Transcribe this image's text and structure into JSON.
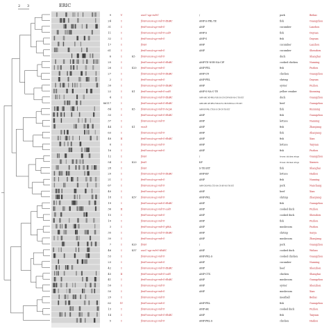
{
  "figure": {
    "header": "ERIC",
    "scale_ticks": [
      "2",
      "3"
    ]
  },
  "rows": [
    {
      "id": "9",
      "st": "V",
      "genes": "uneU-ugz-mdrU",
      "sero": "",
      "res": "/",
      "src": "pork",
      "city": "Beihai"
    },
    {
      "id": "24",
      "st": "I",
      "genes": "fimH-uncA-ugz-mdrO-tEsBC",
      "sero": "",
      "res": "AMP-S-PRL-TE",
      "src": "fish",
      "city": "Guangzhou"
    },
    {
      "id": "31",
      "st": "I",
      "genes": "fimH-uncA-ugz-mdrO",
      "sero": "",
      "res": "AMP",
      "src": "cucumber",
      "city": "Lanzhou"
    },
    {
      "id": "11",
      "st": "I",
      "genes": "fimH-uncA-ugz-mdrO-uulO",
      "sero": "",
      "res": "AMP-S",
      "src": "fish",
      "city": "Dayuan"
    },
    {
      "id": "32",
      "st": "I",
      "genes": "fimH-uncA-ugz-mdrO",
      "sero": "",
      "res": "AMP-S",
      "src": "fish",
      "city": "Dayuan"
    },
    {
      "id": "17",
      "st": "I",
      "genes": "fimH",
      "sero": "",
      "res": "AMP",
      "src": "cucumber",
      "city": "Lanzhou"
    },
    {
      "id": "61",
      "st": "I",
      "genes": "fimH-uncA-ugz-mdrO",
      "sero": "",
      "res": "AMP",
      "src": "cucumber",
      "city": "Shenzhen"
    },
    {
      "id": "6",
      "st": "I",
      "genes": "fimH-uncA-ugz-mdrO",
      "sero": "K5",
      "res": "",
      "src": "duck",
      "city": "Shanghai"
    },
    {
      "id": "25",
      "st": "I",
      "genes": "fimH-uncA-ugz-mdrO-tEsBC",
      "sero": "",
      "res": "AMP-TE-NOR-NA-CIP",
      "src": "cooked chicken",
      "city": "Nanning"
    },
    {
      "id": "26",
      "st": "I",
      "genes": "fimH-uncA-ugz-mdrO",
      "sero": "K20",
      "res": "AMP-PRL",
      "src": "fish",
      "city": "Fuzhou"
    },
    {
      "id": "27",
      "st": "I",
      "genes": "fimH-uncA-ugz-mdrO-tEsBC",
      "sero": "",
      "res": "AMP-CN",
      "src": "chicken",
      "city": "Guangzhou"
    },
    {
      "id": "2",
      "st": "I",
      "genes": "fimH-uncA-ugz-mdrO",
      "sero": "",
      "res": "AMP-PRL",
      "src": "shrimp",
      "city": "Dayuan"
    },
    {
      "id": "39",
      "st": "I",
      "genes": "fimH-uncA-ugz-mdrO-tEsBC",
      "sero": "",
      "res": "AMP",
      "src": "oyster",
      "city": "Fuzhou"
    },
    {
      "id": "22",
      "st": "I",
      "genes": "fimH-uncA-ugz-mdrO-uulO",
      "sero": "K1",
      "res": "AMP-S-NA-C-TE",
      "src": "yellow croaker",
      "city": "Kunming"
    },
    {
      "id": "4",
      "st": "I",
      "genes": "fimH-uncA-ugz-mdrO-tEsBC",
      "sero": "",
      "res": "AMP-AMC-KF-PRL-FOX-S-K-CN-CIP-NOR-NA-C-TE-SXT",
      "src": "duck",
      "city": "Guangzhou"
    },
    {
      "id": "86117",
      "st": "I",
      "genes": "fimH-uncA-ugz-mdrO-tEsBC",
      "sero": "",
      "res": "AMP-AMC-KF-PRL-FOX-K-CN-CIP-NOR-NA-C-TE-SXT",
      "src": "beef",
      "city": "Guangzhou"
    },
    {
      "id": "84",
      "st": "I",
      "genes": "fimH-uncA-ugz-mdrO-mcpA",
      "sero": "K5",
      "res": "AMP-KF-PRL-CTX-K-S-CIP-CN-TE-SXT",
      "src": "fish",
      "city": "Kunming"
    },
    {
      "id": "33",
      "st": "I",
      "genes": "fimH-uncA-ugz-mdrO-tEsBC",
      "sero": "",
      "res": "AMP",
      "src": "fish",
      "city": "Guangzhou"
    },
    {
      "id": "37",
      "st": "I",
      "genes": "fimH-uncA-ugz-mdrO",
      "sero": "",
      "res": "AMP",
      "src": "lettuce",
      "city": "Nanning"
    },
    {
      "id": "44",
      "st": "I",
      "genes": "mcsD",
      "sero": "K1",
      "res": "AMP",
      "src": "fish",
      "city": "Zhanjiang"
    },
    {
      "id": "63",
      "st": "I",
      "genes": "fimH-uncA-ugz-mdrO",
      "sero": "",
      "res": "AMP",
      "src": "fish",
      "city": "Zhanjiang"
    },
    {
      "id": "48",
      "st": "II",
      "genes": "fimH-uncA-ugz-mdrO-tEsBC",
      "sero": "",
      "res": "AMP",
      "src": "fish",
      "city": "Xian"
    },
    {
      "id": "8",
      "st": "I",
      "genes": "fimH-uncA-ugz-mdrO",
      "sero": "",
      "res": "AMP",
      "src": "lettuce",
      "city": "Taiyuan"
    },
    {
      "id": "16",
      "st": "I",
      "genes": "fimH-uncA-ugz-mdrO",
      "sero": "",
      "res": "AMP",
      "src": "fish",
      "city": "Fuzhou"
    },
    {
      "id": "12",
      "st": "I",
      "genes": "fimH",
      "sero": "",
      "res": "/",
      "src": "frozen chicken wings",
      "city": "Guangzhou"
    },
    {
      "id": "54",
      "st": "I",
      "genes": "fimH",
      "sero": "K20",
      "res": "KF",
      "src": "frozen chicken wings",
      "city": "Xiamen"
    },
    {
      "id": "28",
      "st": "I",
      "genes": "fimH",
      "sero": "",
      "res": "S-TE-SXT",
      "src": "fish",
      "city": "Shanghai"
    },
    {
      "id": "20",
      "st": "I",
      "genes": "fimH-uncA-ugz-mdrO-tEsBC",
      "sero": "",
      "res": "AMP-KF",
      "src": "lettuce",
      "city": "Haikou"
    },
    {
      "id": "21",
      "st": "I",
      "genes": "fimH-uncA-ugz-mdrO",
      "sero": "",
      "res": "AMP",
      "src": "fish",
      "city": "Nanning"
    },
    {
      "id": "67",
      "st": "I",
      "genes": "fimH-uncA-ugz-mdrO",
      "sero": "",
      "res": "AMP-CRO-PRL-CTX-NA-CN-KF-K-S-TE-SXT",
      "src": "pork",
      "city": "Nanchang"
    },
    {
      "id": "40",
      "st": "I",
      "genes": "fimH-uncA-ugz-mdrO",
      "sero": "",
      "res": "AMP",
      "src": "beef",
      "city": "Xian"
    },
    {
      "id": "18",
      "st": "I",
      "genes": "fimH-uncA-ugz-mdrO",
      "sero": "K57",
      "res": "AMP-PRL",
      "src": "shrimp",
      "city": "Zhanjiang"
    },
    {
      "id": "19",
      "st": "I",
      "genes": "fimH-uncA-ugz-mdrO-tEsBC",
      "sero": "",
      "res": "AMP",
      "src": "fish",
      "city": "Guangzhou"
    },
    {
      "id": "36",
      "st": "II",
      "genes": "fimH-uncA-ugz-mdrO-uulO",
      "sero": "",
      "res": "AMP",
      "src": "cooked duck",
      "city": "Fuzhou"
    },
    {
      "id": "15",
      "st": "I",
      "genes": "fimH-uncA-ugz-mdrO",
      "sero": "",
      "res": "AMP",
      "src": "cooked duck",
      "city": "Shenzhen"
    },
    {
      "id": "10",
      "st": "I",
      "genes": "fimH-uncA-ugz-mdrO",
      "sero": "",
      "res": "AMP",
      "src": "fish",
      "city": "Fuzhou"
    },
    {
      "id": "3",
      "st": "I",
      "genes": "fimH-uncA-ugz-mdrO-ybhA",
      "sero": "",
      "res": "AMP",
      "src": "mushroom",
      "city": "Fuzhou"
    },
    {
      "id": "35",
      "st": "I",
      "genes": "fimH-uncA-ugz-mdrO-tEsBC",
      "sero": "",
      "res": "AMP",
      "src": "shrimp",
      "city": "Sanya"
    },
    {
      "id": "30",
      "st": "I",
      "genes": "fimH-uncA-ugz-mdrO",
      "sero": "",
      "res": "AMP",
      "src": "mushroom",
      "city": "Zhanjiang"
    },
    {
      "id": "7",
      "st": "I",
      "genes": "fimH",
      "sero": "K20",
      "res": "/",
      "src": "pork",
      "city": "Guangzhou"
    },
    {
      "id": "46",
      "st": "I",
      "genes": "uneU-ugz-mdrO-tEsBC",
      "sero": "K57",
      "res": "AMP",
      "src": "cooked duck",
      "city": "Wuhan"
    },
    {
      "id": "53",
      "st": "I",
      "genes": "fimH-uncA-ugz-mdrO",
      "sero": "",
      "res": "AMP-PRL-S",
      "src": "cooked chicken",
      "city": "Guangzhou"
    },
    {
      "id": "23",
      "st": "I",
      "genes": "fimH-uncA-ugz-mdrO",
      "sero": "",
      "res": "AMP",
      "src": "cucumber",
      "city": "Nanning"
    },
    {
      "id": "42",
      "st": "I",
      "genes": "fimH-uncA-ugz-mdrO-tEsBC",
      "sero": "",
      "res": "AMP",
      "src": "beef",
      "city": "Shenzhen"
    },
    {
      "id": "45",
      "st": "II",
      "genes": "fimH-uncA-ugz-mdrO-uulO",
      "sero": "",
      "res": "AMP-CTX",
      "src": "chicken",
      "city": "Shanghai"
    },
    {
      "id": "41",
      "st": "I",
      "genes": "fimH-uncA-ugz-mdrO-tEsBC",
      "sero": "",
      "res": "AMP",
      "src": "mushroom",
      "city": "Guangzhou"
    },
    {
      "id": "59",
      "st": "I",
      "genes": "fimH-uncA-ugz-mdrO",
      "sero": "",
      "res": "AMP",
      "src": "oyster",
      "city": "Shenzhen"
    },
    {
      "id": "50",
      "st": "I",
      "genes": "fimH-uncA-ugz-mdrO",
      "sero": "",
      "res": "AMP",
      "src": "mushroom",
      "city": "Xian"
    },
    {
      "id": "29",
      "st": "I",
      "genes": "fimH-uncA-ugz-mdrO",
      "sero": "",
      "res": "",
      "src": "meatball",
      "city": "Beihai"
    },
    {
      "id": "62",
      "st": "IV",
      "genes": "fimH-uncA-ugz-mdrO",
      "sero": "",
      "res": "AMP-PRL",
      "src": "fish",
      "city": "Guangzhou"
    },
    {
      "id": "13",
      "st": "I",
      "genes": "fimH-uncA-ugz-mdrO",
      "sero": "",
      "res": "AMP-AK",
      "src": "cooked duck",
      "city": "Fuzhou"
    },
    {
      "id": "14",
      "st": "I",
      "genes": "fimH-uncA-ugz-mdrO-tEsBC",
      "sero": "",
      "res": "AMP",
      "src": "fish",
      "city": "Taiyuan"
    },
    {
      "id": "5",
      "st": "I",
      "genes": "fimH-uncA-ugz-mdrO",
      "sero": "",
      "res": "AMP-PRL-S",
      "src": "chicken",
      "city": "Haikou"
    }
  ],
  "colors": {
    "accent_red": "#c0272d",
    "text_dark": "#222222",
    "gel_bg": "#e9e9e9",
    "gel_band": "#3a3a3a"
  }
}
